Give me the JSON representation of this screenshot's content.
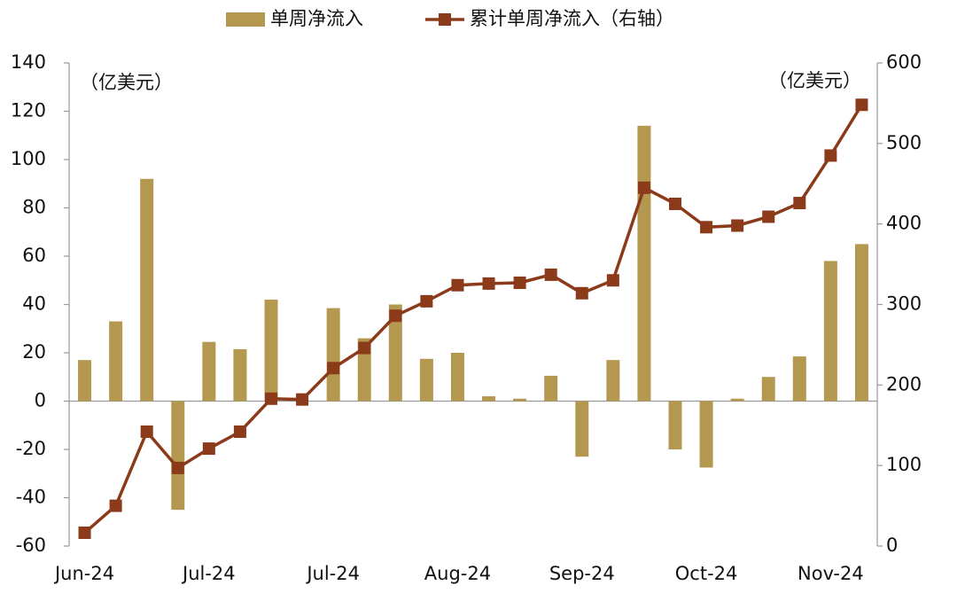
{
  "chart_data": {
    "type": "bar_line",
    "categories": [
      "Jun-24",
      null,
      null,
      null,
      "Jul-24",
      null,
      null,
      null,
      "Jul-24",
      null,
      null,
      null,
      "Aug-24",
      null,
      null,
      null,
      "Sep-24",
      null,
      null,
      null,
      "Oct-24",
      null,
      null,
      null,
      "Nov-24",
      null
    ],
    "series": [
      {
        "name": "单周净流入",
        "color": "#b5984f",
        "type": "bar",
        "values": [
          17,
          33,
          92,
          -45,
          24.5,
          21.5,
          42,
          0,
          38.5,
          26,
          40,
          17.5,
          20,
          2,
          1,
          10.5,
          -23,
          17,
          114,
          -20,
          -27.5,
          1,
          10,
          18.5,
          58,
          65
        ]
      },
      {
        "name": "累计单周净流入（右轴）",
        "color": "#8b3a1a",
        "type": "line",
        "axis": "y2",
        "values": [
          16.5,
          50,
          142,
          97,
          121,
          142,
          183,
          182,
          221,
          246,
          286,
          304,
          324,
          326,
          327,
          337,
          314,
          330,
          445,
          425,
          396,
          398,
          409,
          426,
          485,
          548
        ]
      }
    ],
    "y_unit_label": "（亿美元）",
    "y2_unit_label": "（亿美元）",
    "ylim": [
      -60,
      140
    ],
    "yticks": [
      -60,
      -40,
      -20,
      0,
      20,
      40,
      60,
      80,
      100,
      120,
      140
    ],
    "y2lim": [
      0,
      600
    ],
    "y2ticks": [
      0,
      100,
      200,
      300,
      400,
      500,
      600
    ],
    "grid": false,
    "legend": "top"
  }
}
